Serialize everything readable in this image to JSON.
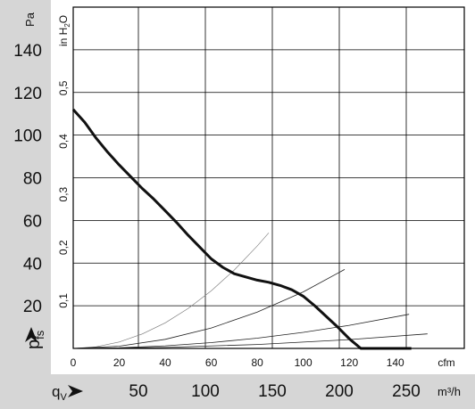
{
  "chart_data": {
    "type": "line",
    "title": "",
    "y_axis": {
      "unit_label": "Pa",
      "ylim": [
        0,
        160
      ],
      "ticks": [
        "20",
        "40",
        "60",
        "80",
        "100",
        "120",
        "140"
      ],
      "symbol": "p",
      "symbol_subscript": "fs"
    },
    "y2_axis": {
      "unit_label": "in H",
      "unit_subscript": "2",
      "unit_suffix": "O",
      "ticks": [
        "0,1",
        "0,2",
        "0,3",
        "0,4",
        "0,5"
      ]
    },
    "x_axis": {
      "unit_label": "cfm",
      "xlim": [
        0,
        170
      ],
      "ticks": [
        "0",
        "20",
        "40",
        "60",
        "80",
        "100",
        "120",
        "140"
      ]
    },
    "x2_axis": {
      "symbol": "q",
      "symbol_subscript": "V",
      "unit_label": "m³/h",
      "ticks": [
        "50",
        "100",
        "150",
        "200",
        "250"
      ]
    },
    "grid": true,
    "series": [
      {
        "role": "fan-curve",
        "points": [
          [
            0,
            112
          ],
          [
            5,
            106
          ],
          [
            10,
            98.5
          ],
          [
            15,
            92
          ],
          [
            20,
            86
          ],
          [
            25,
            80.5
          ],
          [
            30,
            75
          ],
          [
            35,
            70
          ],
          [
            40,
            64.5
          ],
          [
            45,
            59
          ],
          [
            50,
            53
          ],
          [
            55,
            47.5
          ],
          [
            60,
            42
          ],
          [
            65,
            38
          ],
          [
            70,
            35
          ],
          [
            75,
            33.5
          ],
          [
            80,
            32
          ],
          [
            85,
            31
          ],
          [
            90,
            29.5
          ],
          [
            95,
            27.5
          ],
          [
            100,
            24.5
          ],
          [
            105,
            20
          ],
          [
            110,
            15
          ],
          [
            115,
            10
          ],
          [
            120,
            4.5
          ],
          [
            125,
            0
          ],
          [
            147,
            0
          ]
        ]
      },
      {
        "role": "system-curve",
        "points": [
          [
            0,
            0
          ],
          [
            10,
            0.75
          ],
          [
            20,
            3
          ],
          [
            30,
            6.75
          ],
          [
            40,
            12
          ],
          [
            50,
            18.75
          ],
          [
            60,
            27
          ],
          [
            70,
            36.75
          ],
          [
            80,
            48
          ],
          [
            85,
            54.2
          ]
        ]
      },
      {
        "role": "system-curve",
        "points": [
          [
            0,
            0
          ],
          [
            20,
            1.06
          ],
          [
            40,
            4.25
          ],
          [
            60,
            9.55
          ],
          [
            80,
            17
          ],
          [
            100,
            26.5
          ],
          [
            118,
            37
          ]
        ]
      },
      {
        "role": "system-curve",
        "points": [
          [
            0,
            0
          ],
          [
            20,
            0.3
          ],
          [
            40,
            1.2
          ],
          [
            60,
            2.7
          ],
          [
            80,
            4.8
          ],
          [
            100,
            7.5
          ],
          [
            120,
            10.8
          ],
          [
            146,
            16
          ]
        ]
      },
      {
        "role": "system-curve",
        "points": [
          [
            0,
            0
          ],
          [
            40,
            0.46
          ],
          [
            80,
            1.84
          ],
          [
            120,
            4.15
          ],
          [
            154,
            6.8
          ]
        ]
      }
    ],
    "colors": {
      "panel": "#d6d6d6",
      "plot_bg": "#ffffff",
      "grid": "#000000",
      "curve": "#111111"
    }
  }
}
